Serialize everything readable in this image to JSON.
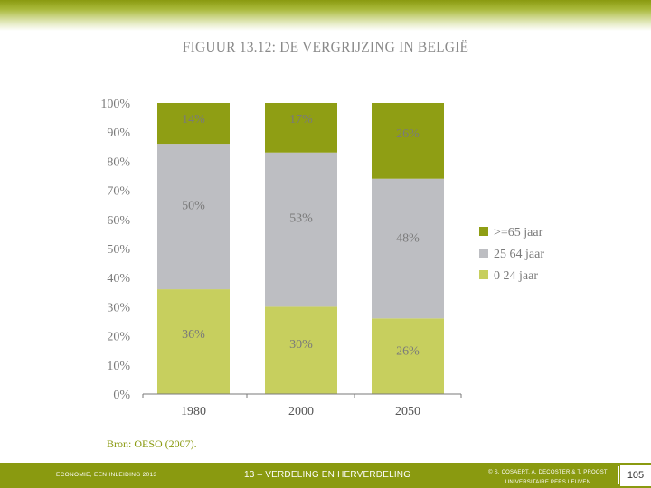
{
  "slide": {
    "title": "FIGUUR 13.12: DE VERGRIJZING IN BELGIË",
    "source": "Bron: OESO (2007).",
    "page_number": "105"
  },
  "footer": {
    "left": "ECONOMIE, EEN INLEIDING 2013",
    "center": "13 – VERDELING EN HERVERDELING",
    "right_line1": "© S. COSAERT, A. DECOSTER & T. PROOST",
    "right_line2": "UNIVERSITAIRE PERS LEUVEN"
  },
  "colors": {
    "band": "#8a9a10",
    "old": "#8f9e14",
    "mid": "#bdbec2",
    "young": "#c7cf5e",
    "label": "#7a7a7a",
    "axis": "#7a7a7a"
  },
  "chart_data": {
    "type": "bar",
    "stacked": true,
    "percent": true,
    "categories": [
      "1980",
      "2000",
      "2050"
    ],
    "series": [
      {
        "name": "0 24 jaar",
        "color": "#c7cf5e",
        "values": [
          36,
          30,
          26
        ],
        "labels": [
          "36%",
          "30%",
          "26%"
        ]
      },
      {
        "name": "25 64 jaar",
        "color": "#bdbec2",
        "values": [
          50,
          53,
          48
        ],
        "labels": [
          "50%",
          "53%",
          "48%"
        ]
      },
      {
        "name": ">=65 jaar",
        "color": "#8f9e14",
        "values": [
          14,
          17,
          26
        ],
        "labels": [
          "14%",
          "17%",
          "26%"
        ]
      }
    ],
    "legend_order": [
      ">=65 jaar",
      "25 64 jaar",
      "0 24 jaar"
    ],
    "y_ticks": [
      "0%",
      "10%",
      "20%",
      "30%",
      "40%",
      "50%",
      "60%",
      "70%",
      "80%",
      "90%",
      "100%"
    ],
    "ylim": [
      0,
      100
    ],
    "legend_position": "right"
  }
}
